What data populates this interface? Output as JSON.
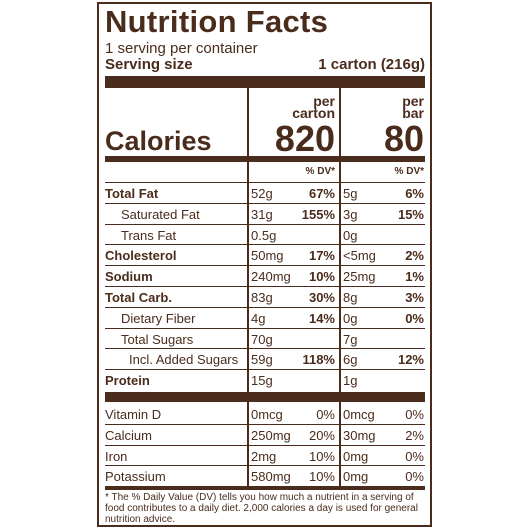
{
  "title": "Nutrition Facts",
  "servings": "1 serving per container",
  "serving_size_label": "Serving size",
  "serving_size": "1 carton (216g)",
  "calories_label": "Calories",
  "columns": [
    {
      "header": [
        "per",
        "carton"
      ],
      "calories": 820
    },
    {
      "header": [
        "per",
        "bar"
      ],
      "calories": 80
    }
  ],
  "dv_header": "% DV*",
  "nutrients": [
    {
      "name": "Total Fat",
      "bold": true,
      "indent": 0,
      "values": [
        [
          "52g",
          "67%"
        ],
        [
          "5g",
          "6%"
        ]
      ]
    },
    {
      "name": "Saturated Fat",
      "bold": false,
      "indent": 1,
      "values": [
        [
          "31g",
          "155%"
        ],
        [
          "3g",
          "15%"
        ]
      ]
    },
    {
      "name": "Trans Fat",
      "bold": false,
      "indent": 1,
      "values": [
        [
          "0.5g"
        ],
        [
          "0g"
        ]
      ]
    },
    {
      "name": "Cholesterol",
      "bold": true,
      "indent": 0,
      "values": [
        [
          "50mg",
          "17%"
        ],
        [
          "<5mg",
          "2%"
        ]
      ]
    },
    {
      "name": "Sodium",
      "bold": true,
      "indent": 0,
      "values": [
        [
          "240mg",
          "10%"
        ],
        [
          "25mg",
          "1%"
        ]
      ]
    },
    {
      "name": "Total Carb.",
      "bold": true,
      "indent": 0,
      "values": [
        [
          "83g",
          "30%"
        ],
        [
          "8g",
          "3%"
        ]
      ]
    },
    {
      "name": "Dietary Fiber",
      "bold": false,
      "indent": 1,
      "values": [
        [
          "4g",
          "14%"
        ],
        [
          "0g",
          "0%"
        ]
      ]
    },
    {
      "name": "Total Sugars",
      "bold": false,
      "indent": 1,
      "values": [
        [
          "70g"
        ],
        [
          "7g"
        ]
      ]
    },
    {
      "name": "Incl. Added Sugars",
      "bold": false,
      "indent": 2,
      "values": [
        [
          "59g",
          "118%"
        ],
        [
          "6g",
          "12%"
        ]
      ]
    },
    {
      "name": "Protein",
      "bold": true,
      "indent": 0,
      "values": [
        [
          "15g"
        ],
        [
          "1g"
        ]
      ]
    }
  ],
  "vitamins": [
    {
      "name": "Vitamin D",
      "values": [
        [
          "0mcg",
          "0%"
        ],
        [
          "0mcg",
          "0%"
        ]
      ]
    },
    {
      "name": "Calcium",
      "values": [
        [
          "250mg",
          "20%"
        ],
        [
          "30mg",
          "2%"
        ]
      ]
    },
    {
      "name": "Iron",
      "values": [
        [
          "2mg",
          "10%"
        ],
        [
          "0mg",
          "0%"
        ]
      ]
    },
    {
      "name": "Potassium",
      "values": [
        [
          "580mg",
          "10%"
        ],
        [
          "0mg",
          "0%"
        ]
      ]
    }
  ],
  "footnote": "* The % Daily Value (DV) tells you how much a nutrient in a serving of food contributes to a daily diet. 2,000 calories a day is used for general nutrition advice."
}
